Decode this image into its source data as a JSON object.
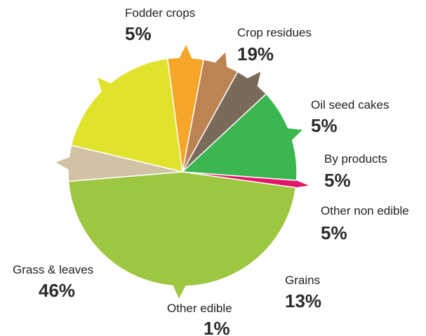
{
  "chart_data": {
    "type": "pie",
    "title": "",
    "slices": [
      {
        "label": "Crop residues",
        "pct_label": "19%",
        "value": 19,
        "color": "#E0E22C"
      },
      {
        "label": "Oil seed cakes",
        "pct_label": "5%",
        "value": 5,
        "color": "#F6A628"
      },
      {
        "label": "By products",
        "pct_label": "5%",
        "value": 5,
        "color": "#BC8452"
      },
      {
        "label": "Other non edible",
        "pct_label": "5%",
        "value": 5,
        "color": "#7A6A5A"
      },
      {
        "label": "Grains",
        "pct_label": "13%",
        "value": 13,
        "color": "#3BB650"
      },
      {
        "label": "Other edible",
        "pct_label": "1%",
        "value": 1,
        "color": "#E5156C"
      },
      {
        "label": "Grass & leaves",
        "pct_label": "46%",
        "value": 46,
        "color": "#9DC740"
      },
      {
        "label": "Fodder crops",
        "pct_label": "5%",
        "value": 5,
        "color": "#D1C2A5"
      }
    ]
  }
}
